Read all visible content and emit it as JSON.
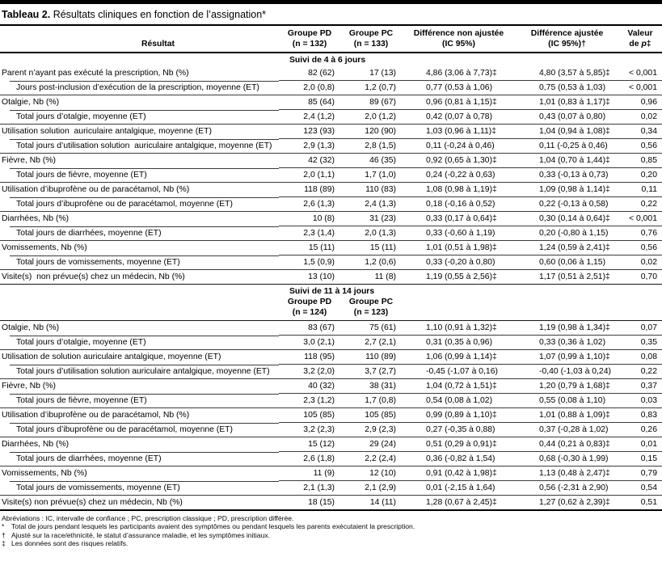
{
  "title": {
    "label": "Tableau 2.",
    "text": " Résultats cliniques en fonction de l’assignation*"
  },
  "columns": {
    "result": "Résultat",
    "group_pd_line1": "Groupe PD",
    "group_pd_line2": "(n = 132)",
    "group_pc_line1": "Groupe PC",
    "group_pc_line2": "(n = 133)",
    "diff_unadjusted_line1": "Différence non ajustée",
    "diff_unadjusted_line2": "(IC 95%)",
    "diff_adjusted_line1": "Différence ajustée",
    "diff_adjusted_line2": "(IC 95%)†",
    "p_line1": "Valeur",
    "p_pre": "de ",
    "p_char": "p",
    "p_suffix": "‡"
  },
  "sections": [
    {
      "header": "Suivi de 4 à 6 jours",
      "rows": [
        {
          "label": "Parent n’ayant pas exécuté la prescription, Nb (%)",
          "indent": false,
          "pd": "82 (62)",
          "pc": "17 (13)",
          "diff": "4,86 (3,06 à 7,73)‡",
          "diff_adj": "4,80 (3,57 à 5,85)‡",
          "p": "< 0,001"
        },
        {
          "label": "Jours post-inclusion d’exécution de la prescription, moyenne (ET)",
          "indent": true,
          "pd": "2,0 (0,8)",
          "pc": "1,2 (0,7)",
          "diff": "0,77 (0,53 à 1,06)",
          "diff_adj": "0,75 (0,53 à 1,03)",
          "p": "< 0,001"
        },
        {
          "label": "Otalgie, Nb (%)",
          "indent": false,
          "pd": "85 (64)",
          "pc": "89 (67)",
          "diff": "0,96 (0,81 à 1,15)‡",
          "diff_adj": "1,01 (0,83 à 1,17)‡",
          "p": "0,96"
        },
        {
          "label": "Total jours d’otalgie, moyenne (ET)",
          "indent": true,
          "pd": "2,4 (1,2)",
          "pc": "2,0 (1,2)",
          "diff": "0,42 (0,07 à 0,78)",
          "diff_adj": "0,43 (0,07 à 0,80)",
          "p": "0,02"
        },
        {
          "label": "Utilisation solution  auriculaire antalgique, moyenne (ET)",
          "indent": false,
          "pd": "123 (93)",
          "pc": "120 (90)",
          "diff": "1,03 (0,96 à 1,11)‡",
          "diff_adj": "1,04 (0,94 à 1,08)‡",
          "p": "0,34"
        },
        {
          "label": "Total jours d’utilisation solution  auriculaire antalgique, moyenne (ET)",
          "indent": true,
          "pd": "2,9 (1,3)",
          "pc": "2,8 (1,5)",
          "diff": "0,11 (-0,24 à 0,46)",
          "diff_adj": "0,11 (-0,25 à 0,46)",
          "p": "0,56"
        },
        {
          "label": "Fièvre, Nb (%)",
          "indent": false,
          "pd": "42 (32)",
          "pc": "46 (35)",
          "diff": "0,92 (0,65 à 1,30)‡",
          "diff_adj": "1,04 (0,70 à 1,44)‡",
          "p": "0,85"
        },
        {
          "label": "Total jours de fièvre, moyenne (ET)",
          "indent": true,
          "pd": "2,0 (1,1)",
          "pc": "1,7 (1,0)",
          "diff": "0,24 (-0,22 à 0,63)",
          "diff_adj": "0,33 (-0,13 à 0,73)",
          "p": "0,20"
        },
        {
          "label": "Utilisation d’ibuprofène ou de paracétamol, Nb (%)",
          "indent": false,
          "pd": "118 (89)",
          "pc": "110 (83)",
          "diff": "1,08 (0,98 à 1,19)‡",
          "diff_adj": "1,09 (0,98 à 1,14)‡",
          "p": "0,11"
        },
        {
          "label": "Total jours d’ibuprofène ou de paracétamol, moyenne (ET)",
          "indent": true,
          "pd": "2,6 (1,3)",
          "pc": "2,4 (1,3)",
          "diff": "0,18 (-0,16 à 0,52)",
          "diff_adj": "0,22 (-0,13 à 0,58)",
          "p": "0,22"
        },
        {
          "label": "Diarrhées, Nb (%)",
          "indent": false,
          "pd": "10 (8)",
          "pc": "31 (23)",
          "diff": "0,33 (0,17 à 0,64)‡",
          "diff_adj": "0,30 (0,14 à 0,64)‡",
          "p": "< 0,001"
        },
        {
          "label": "Total jours de diarrhées, moyenne (ET)",
          "indent": true,
          "pd": "2,3 (1,4)",
          "pc": "2,0 (1,3)",
          "diff": "0,33 (-0,60 à 1,19)",
          "diff_adj": "0,20 (-0,80 à 1,15)",
          "p": "0,76"
        },
        {
          "label": "Vomissements, Nb (%)",
          "indent": false,
          "pd": "15 (11)",
          "pc": "15 (11)",
          "diff": "1,01 (0,51 à 1,98)‡",
          "diff_adj": "1,24 (0,59 à 2,41)‡",
          "p": "0,56"
        },
        {
          "label": "Total jours de vomissements, moyenne (ET)",
          "indent": true,
          "pd": "1,5 (0,9)",
          "pc": "1,2 (0,6)",
          "diff": "0,33 (-0,20 à 0,80)",
          "diff_adj": "0,60 (0,06 à 1,15)",
          "p": "0,02"
        },
        {
          "label": "Visite(s)  non prévue(s) chez un médecin, Nb (%)",
          "indent": false,
          "pd": "13 (10)",
          "pc": "11 (8)",
          "diff": "1,19 (0,55 à 2,56)‡",
          "diff_adj": "1,17 (0,51 à 2,51)‡",
          "p": "0,70"
        }
      ]
    },
    {
      "header": "Suivi de 11 à 14 jours",
      "group_headers": {
        "pd_line1": "Groupe PD",
        "pd_line2": "(n = 124)",
        "pc_line1": "Groupe PC",
        "pc_line2": "(n = 123)"
      },
      "rows": [
        {
          "label": "Otalgie, Nb (%)",
          "indent": false,
          "pd": "83 (67)",
          "pc": "75 (61)",
          "diff": "1,10 (0,91 à 1,32)‡",
          "diff_adj": "1,19 (0,98 à 1,34)‡",
          "p": "0,07"
        },
        {
          "label": "Total jours d’otalgie, moyenne (ET)",
          "indent": true,
          "pd": "3,0 (2,1)",
          "pc": "2,7 (2,1)",
          "diff": "0,31 (0,35 à 0,96)",
          "diff_adj": "0,33 (0,36 à 1,02)",
          "p": "0,35"
        },
        {
          "label": "Utilisation de solution auriculaire antalgique, moyenne (ET)",
          "indent": false,
          "pd": "118 (95)",
          "pc": "110 (89)",
          "diff": "1,06 (0,99 à 1,14)‡",
          "diff_adj": "1,07 (0,99 à 1,10)‡",
          "p": "0,08"
        },
        {
          "label": "Total jours d’utilisation solution auriculaire antalgique, moyenne (ET)",
          "indent": true,
          "pd": "3,2 (2,0)",
          "pc": "3,7 (2,7)",
          "diff": "-0,45 (-1,07 à 0,16)",
          "diff_adj": "-0,40 (-1,03 à 0,24)",
          "p": "0,22"
        },
        {
          "label": "Fièvre, Nb (%)",
          "indent": false,
          "pd": "40 (32)",
          "pc": "38 (31)",
          "diff": "1,04 (0,72 à 1,51)‡",
          "diff_adj": "1,20 (0,79 à 1,68)‡",
          "p": "0,37"
        },
        {
          "label": "Total jours de fièvre, moyenne (ET)",
          "indent": true,
          "pd": "2,3 (1,2)",
          "pc": "1,7 (0,8)",
          "diff": "0,54 (0,08 à 1,02)",
          "diff_adj": "0,55 (0,08 à 1,10)",
          "p": "0,03"
        },
        {
          "label": "Utilisation d’ibuprofène ou de paracétamol, Nb (%)",
          "indent": false,
          "pd": "105 (85)",
          "pc": "105 (85)",
          "diff": "0,99 (0,89 à 1,10)‡",
          "diff_adj": "1,01 (0,88 à 1,09)‡",
          "p": "0,83"
        },
        {
          "label": "Total jours d’ibuprofène ou de paracétamol, moyenne (ET)",
          "indent": true,
          "pd": "3,2 (2,3)",
          "pc": "2,9 (2,3)",
          "diff": "0,27 (-0,35 à 0,88)",
          "diff_adj": "0,37 (-0,28 à 1,02)",
          "p": "0,26"
        },
        {
          "label": "Diarrhées, Nb (%)",
          "indent": false,
          "pd": "15 (12)",
          "pc": "29 (24)",
          "diff": "0,51 (0,29 à 0,91)‡",
          "diff_adj": "0,44 (0,21 à 0,83)‡",
          "p": "0,01"
        },
        {
          "label": "Total jours de diarrhées, moyenne (ET)",
          "indent": true,
          "pd": "2,6 (1,8)",
          "pc": "2,2 (2,4)",
          "diff": "0,36 (-0,82 à 1,54)",
          "diff_adj": "0,68 (-0,30 à 1,99)",
          "p": "0,15"
        },
        {
          "label": "Vomissements, Nb (%)",
          "indent": false,
          "pd": "11 (9)",
          "pc": "12 (10)",
          "diff": "0,91 (0,42 à 1,98)‡",
          "diff_adj": "1,13 (0,48 à 2,47)‡",
          "p": "0,79"
        },
        {
          "label": "Total jours de vomissements, moyenne (ET)",
          "indent": true,
          "pd": "2,1 (1,3)",
          "pc": "2,1 (2,9)",
          "diff": "0,01 (-2,15 à 1,64)",
          "diff_adj": "0,56 (-2,31 à 2,90)",
          "p": "0,54"
        },
        {
          "label": "Visite(s) non prévue(s) chez un médecin, Nb (%)",
          "indent": false,
          "pd": "18 (15)",
          "pc": "14 (11)",
          "diff": "1,28 (0,67 à 2,45)‡",
          "diff_adj": "1,27 (0,62 à 2,39)‡",
          "p": "0,51"
        }
      ]
    }
  ],
  "footnotes": [
    {
      "marker": "",
      "text": "Abréviations : IC, intervalle de confiance ; PC, prescription classique ; PD, prescription différée."
    },
    {
      "marker": "*",
      "text": "Total de jours pendant lesquels les participants avaient des symptômes ou pendant lesquels les parents exécutaient la prescription."
    },
    {
      "marker": "†",
      "text": "Ajusté sur la race/ethnicité, le statut d’assurance maladie, et les symptômes initiaux."
    },
    {
      "marker": "‡",
      "text": "Les données sont des risques relatifs."
    }
  ]
}
